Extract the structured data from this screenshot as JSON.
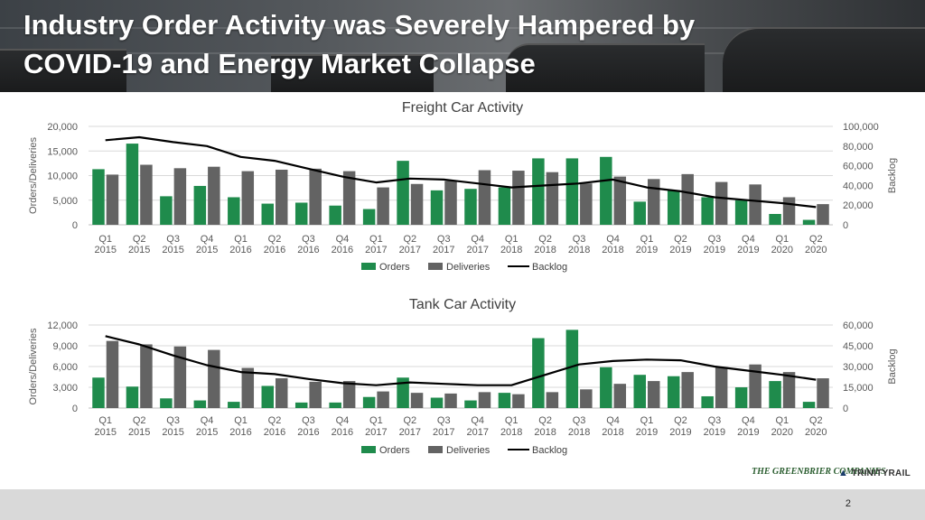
{
  "page": {
    "title_line1": "Industry Order Activity was Severely Hampered by",
    "title_line2": "COVID-19 and Energy Market Collapse",
    "page_number": "2",
    "logos": {
      "left": "THE GREENBRIER COMPANIES",
      "right": "TRINITYRAIL"
    }
  },
  "colors": {
    "orders": "#1f8b4c",
    "deliveries": "#636363",
    "backlog": "#000000",
    "axis_text": "#595959"
  },
  "chart_data": [
    {
      "type": "bar",
      "title": "Freight Car Activity",
      "categories": [
        [
          "Q1",
          "2015"
        ],
        [
          "Q2",
          "2015"
        ],
        [
          "Q3",
          "2015"
        ],
        [
          "Q4",
          "2015"
        ],
        [
          "Q1",
          "2016"
        ],
        [
          "Q2",
          "2016"
        ],
        [
          "Q3",
          "2016"
        ],
        [
          "Q4",
          "2016"
        ],
        [
          "Q1",
          "2017"
        ],
        [
          "Q2",
          "2017"
        ],
        [
          "Q3",
          "2017"
        ],
        [
          "Q4",
          "2017"
        ],
        [
          "Q1",
          "2018"
        ],
        [
          "Q2",
          "2018"
        ],
        [
          "Q3",
          "2018"
        ],
        [
          "Q4",
          "2018"
        ],
        [
          "Q1",
          "2019"
        ],
        [
          "Q2",
          "2019"
        ],
        [
          "Q3",
          "2019"
        ],
        [
          "Q4",
          "2019"
        ],
        [
          "Q1",
          "2020"
        ],
        [
          "Q2",
          "2020"
        ]
      ],
      "ylabel": "Orders/Deliveries",
      "y2label": "Backlog",
      "ylim": [
        0,
        20000
      ],
      "yticks": [
        "0",
        "5,000",
        "10,000",
        "15,000",
        "20,000"
      ],
      "y2lim": [
        0,
        100000
      ],
      "y2ticks": [
        "0",
        "20,000",
        "40,000",
        "60,000",
        "80,000",
        "100,000"
      ],
      "grid": true,
      "legend": "bottom",
      "series": [
        {
          "name": "Orders",
          "kind": "bar",
          "values": [
            11300,
            16500,
            5800,
            7900,
            5600,
            4300,
            4500,
            3900,
            3200,
            13000,
            7000,
            7300,
            7600,
            13500,
            13500,
            13800,
            4700,
            7000,
            5600,
            5000,
            2200,
            1000
          ]
        },
        {
          "name": "Deliveries",
          "kind": "bar",
          "values": [
            10200,
            12200,
            11500,
            11800,
            10900,
            11200,
            11400,
            10900,
            7600,
            8300,
            8900,
            11100,
            11000,
            10700,
            8400,
            9800,
            9300,
            10300,
            8700,
            8200,
            5600,
            4200
          ]
        },
        {
          "name": "Backlog",
          "kind": "line",
          "axis": "right",
          "values": [
            86000,
            89000,
            84000,
            80000,
            69000,
            65000,
            57000,
            49000,
            43000,
            47000,
            46000,
            42000,
            38000,
            40000,
            42000,
            46000,
            38000,
            34000,
            28000,
            25000,
            22000,
            18000
          ]
        }
      ]
    },
    {
      "type": "bar",
      "title": "Tank Car Activity",
      "categories": [
        [
          "Q1",
          "2015"
        ],
        [
          "Q2",
          "2015"
        ],
        [
          "Q3",
          "2015"
        ],
        [
          "Q4",
          "2015"
        ],
        [
          "Q1",
          "2016"
        ],
        [
          "Q2",
          "2016"
        ],
        [
          "Q3",
          "2016"
        ],
        [
          "Q4",
          "2016"
        ],
        [
          "Q1",
          "2017"
        ],
        [
          "Q2",
          "2017"
        ],
        [
          "Q3",
          "2017"
        ],
        [
          "Q4",
          "2017"
        ],
        [
          "Q1",
          "2018"
        ],
        [
          "Q2",
          "2018"
        ],
        [
          "Q3",
          "2018"
        ],
        [
          "Q4",
          "2018"
        ],
        [
          "Q1",
          "2019"
        ],
        [
          "Q2",
          "2019"
        ],
        [
          "Q3",
          "2019"
        ],
        [
          "Q4",
          "2019"
        ],
        [
          "Q1",
          "2020"
        ],
        [
          "Q2",
          "2020"
        ]
      ],
      "ylabel": "Orders/Deliveries",
      "y2label": "Backlog",
      "ylim": [
        0,
        12000
      ],
      "yticks": [
        "0",
        "3,000",
        "6,000",
        "9,000",
        "12,000"
      ],
      "y2lim": [
        0,
        60000
      ],
      "y2ticks": [
        "0",
        "15,000",
        "30,000",
        "45,000",
        "60,000"
      ],
      "grid": true,
      "legend": "bottom",
      "series": [
        {
          "name": "Orders",
          "kind": "bar",
          "values": [
            4400,
            3100,
            1400,
            1100,
            900,
            3200,
            800,
            800,
            1600,
            4400,
            1500,
            1100,
            2200,
            10100,
            11300,
            5900,
            4800,
            4600,
            1700,
            3000,
            3900,
            900
          ]
        },
        {
          "name": "Deliveries",
          "kind": "bar",
          "values": [
            9700,
            9200,
            8900,
            8400,
            5800,
            4300,
            3800,
            3900,
            2400,
            2200,
            2100,
            2300,
            2000,
            2300,
            2700,
            3500,
            3900,
            5200,
            5900,
            6300,
            5200,
            4300
          ]
        },
        {
          "name": "Backlog",
          "kind": "line",
          "axis": "right",
          "values": [
            52000,
            46000,
            38000,
            31000,
            26000,
            24500,
            21000,
            18000,
            16500,
            18500,
            17500,
            16500,
            16500,
            24000,
            31500,
            34000,
            35000,
            34500,
            30000,
            27000,
            24000,
            20500
          ]
        }
      ]
    }
  ]
}
